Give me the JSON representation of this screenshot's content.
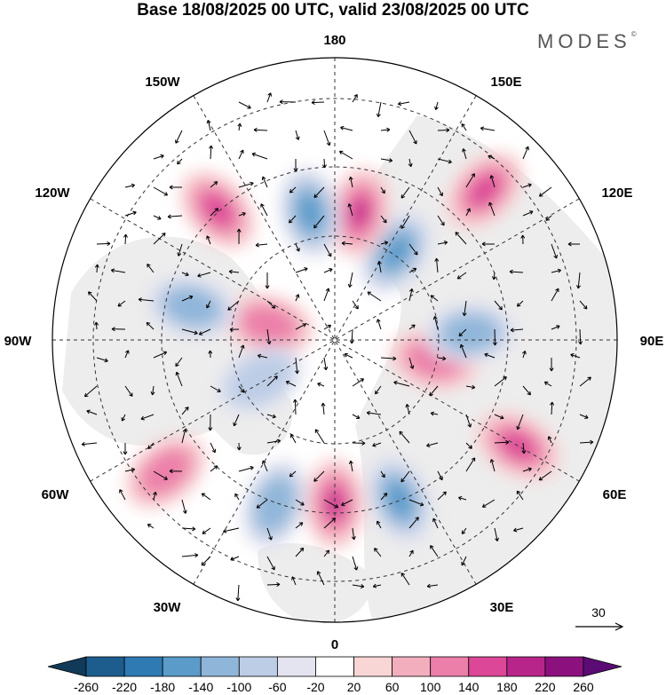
{
  "title": "Base 18/08/2025 00 UTC, valid 23/08/2025 00 UTC",
  "brand": "MODES",
  "brand_mark": "©",
  "longitude_labels": {
    "n": "180",
    "nw": "150W",
    "ne": "150E",
    "wnw": "120W",
    "ene": "120E",
    "w": "90W",
    "e": "90E",
    "wsw": "60W",
    "ese": "60E",
    "sw": "30W",
    "se": "30E",
    "s": "0"
  },
  "reference_vector": {
    "label": "30"
  },
  "colorbar": {
    "labels": [
      "-260",
      "-220",
      "-180",
      "-140",
      "-100",
      "-60",
      "-20",
      "20",
      "60",
      "100",
      "140",
      "180",
      "220",
      "260"
    ],
    "colors": [
      "#103a58",
      "#1d5d8e",
      "#2f7ab3",
      "#5a9bc9",
      "#8fb6d9",
      "#bdcde6",
      "#e4e4f0",
      "#ffffff",
      "#f9d6d6",
      "#f3aebe",
      "#ec7fa9",
      "#dc4797",
      "#b8258a",
      "#8c117f",
      "#5a0c74"
    ]
  },
  "anomaly_centres": [
    {
      "sign": "pos",
      "level": 4,
      "lon": 180,
      "r": 0.58
    },
    {
      "sign": "neg",
      "level": 3,
      "lon": -158,
      "r": 0.61
    },
    {
      "sign": "neg",
      "level": 2,
      "lon": 160,
      "r": 0.62
    },
    {
      "sign": "pos",
      "level": 2,
      "lon": 128,
      "r": 0.76
    },
    {
      "sign": "pos",
      "level": 3,
      "lon": -120,
      "r": 0.75
    },
    {
      "sign": "pos",
      "level": 2,
      "lon": -101,
      "r": 0.36
    },
    {
      "sign": "neg",
      "level": 2,
      "lon": -87,
      "r": 0.48
    },
    {
      "sign": "neg",
      "level": 3,
      "lon": -35,
      "r": 0.38
    },
    {
      "sign": "pos",
      "level": 4,
      "lon": -11,
      "r": 0.46
    },
    {
      "sign": "neg",
      "level": 3,
      "lon": 11,
      "r": 0.46
    },
    {
      "sign": "pos",
      "level": 2,
      "lon": 77,
      "r": 0.24
    },
    {
      "sign": "neg",
      "level": 2,
      "lon": 77,
      "r": 0.52
    },
    {
      "sign": "pos",
      "level": 3,
      "lon": 42,
      "r": 0.62
    },
    {
      "sign": "pos",
      "level": 3,
      "lon": -45,
      "r": 0.75
    },
    {
      "sign": "neg",
      "level": 1,
      "lon": 118,
      "r": 0.3
    }
  ]
}
